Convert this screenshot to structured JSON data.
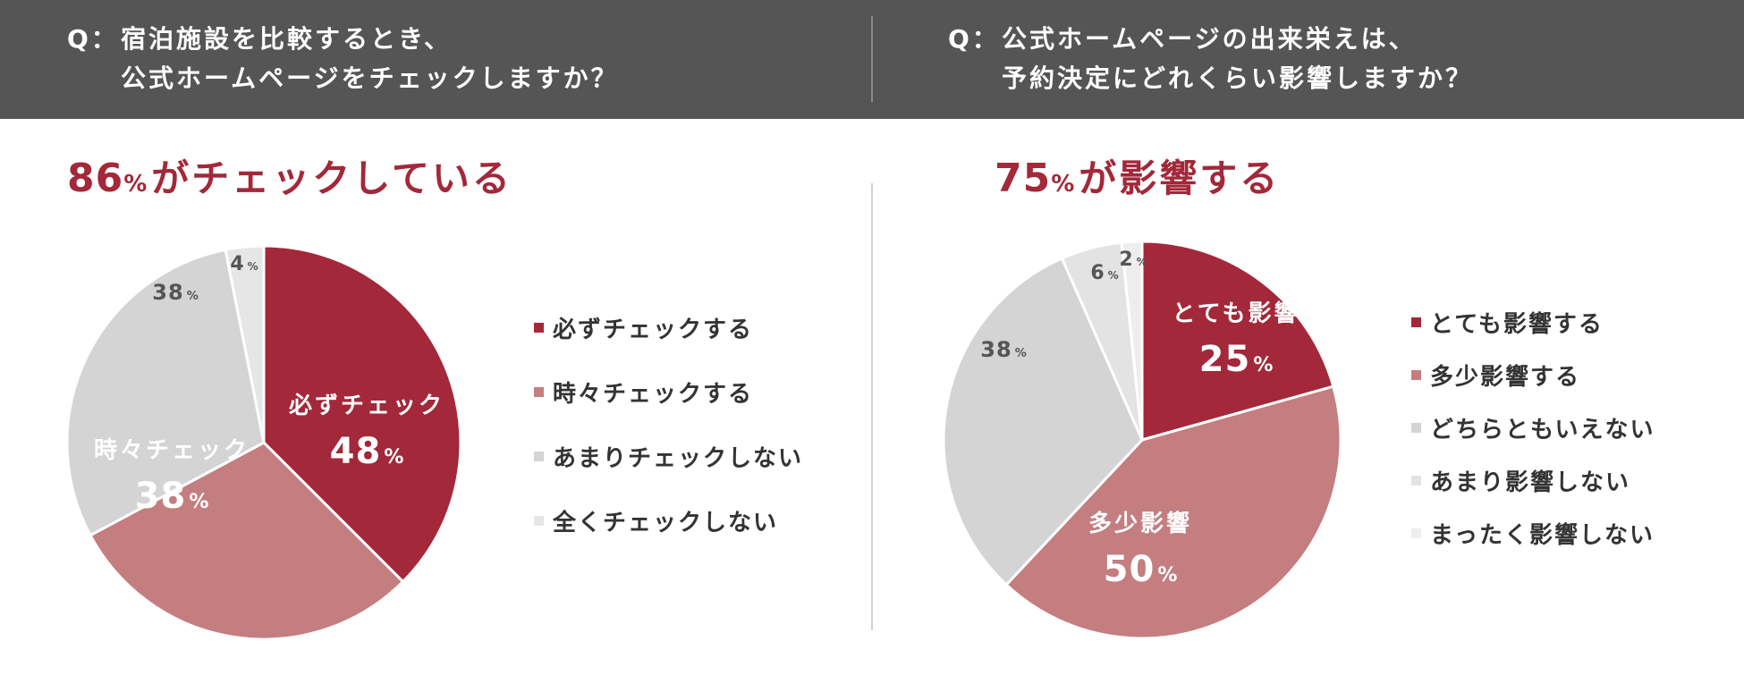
{
  "questions": {
    "left": {
      "prefix": "Q：",
      "line1": "宿泊施設を比較するとき、",
      "line2": "公式ホームページをチェックしますか？"
    },
    "right": {
      "prefix": "Q：",
      "line1": "公式ホームページの出来栄えは、",
      "line2": "予約決定にどれくらい影響しますか？"
    }
  },
  "headlines": {
    "left": {
      "number": "86",
      "unit": "%",
      "text": "がチェックしている"
    },
    "right": {
      "number": "75",
      "unit": "%",
      "text": "が影響する"
    }
  },
  "colors": {
    "accent": "#a32839",
    "dark_red": "#a32839",
    "rose": "#c47e80",
    "light_gray": "#d4d4d4",
    "lighter_gray": "#e3e3e3",
    "lightest_gray": "#eeeeee",
    "header_bg": "#555555"
  },
  "chart_data": [
    {
      "type": "pie",
      "categories": [
        "必ずチェックする",
        "時々チェックする",
        "あまりチェックしない",
        "全くチェックしない"
      ],
      "values": [
        48,
        38,
        38,
        4
      ],
      "colors": [
        "#a32839",
        "#c47e80",
        "#d4d4d4",
        "#e6e6e6"
      ],
      "slice_labels": [
        {
          "name": "必ずチェック",
          "value": "48",
          "unit": "%"
        },
        {
          "name": "時々チェック",
          "value": "38",
          "unit": "%"
        },
        {
          "name": "",
          "value": "38",
          "unit": "%"
        },
        {
          "name": "",
          "value": "4",
          "unit": "%"
        }
      ],
      "legend": [
        "必ずチェックする",
        "時々チェックする",
        "あまりチェックしない",
        "全くチェックしない"
      ],
      "legend_position": "right"
    },
    {
      "type": "pie",
      "categories": [
        "とても影響する",
        "多少影響する",
        "どちらともいえない",
        "あまり影響しない",
        "まったく影響しない"
      ],
      "values": [
        25,
        50,
        38,
        6,
        2
      ],
      "colors": [
        "#a32839",
        "#c47e80",
        "#d4d4d4",
        "#e3e3e3",
        "#eeeeee"
      ],
      "slice_labels": [
        {
          "name": "とても影響",
          "value": "25",
          "unit": "%"
        },
        {
          "name": "多少影響",
          "value": "50",
          "unit": "%"
        },
        {
          "name": "",
          "value": "38",
          "unit": "%"
        },
        {
          "name": "",
          "value": "6",
          "unit": "%"
        },
        {
          "name": "",
          "value": "2",
          "unit": "%"
        }
      ],
      "legend": [
        "とても影響する",
        "多少影響する",
        "どちらともいえない",
        "あまり影響しない",
        "まったく影響しない"
      ],
      "legend_position": "right"
    }
  ]
}
